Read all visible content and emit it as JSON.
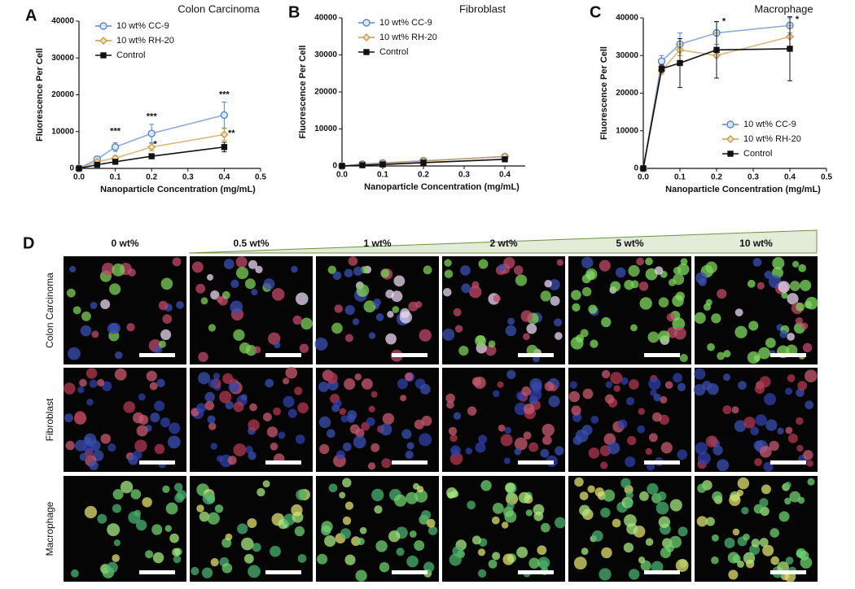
{
  "chart_data": [
    {
      "type": "line",
      "panel": "A",
      "title": "Colon  Carcinoma",
      "x_label": "Nanoparticle Concentration (mg/mL)",
      "y_label": "Fluorescence Per Cell",
      "x": [
        0,
        0.05,
        0.1,
        0.2,
        0.4
      ],
      "xlim": [
        0,
        0.5
      ],
      "xticks": [
        {
          "value": 0,
          "label": "0.0"
        },
        0.1,
        0.2,
        0.3,
        0.4,
        0.5
      ],
      "ylim": [
        0,
        40000
      ],
      "yticks": [
        0,
        10000,
        20000,
        30000,
        40000
      ],
      "legend": "upper left",
      "series": [
        {
          "name": "10 wt% CC-9",
          "color": "#5b86c4",
          "marker": "circle",
          "values": [
            0,
            2500,
            5800,
            9500,
            14500
          ],
          "errors": [
            0,
            800,
            1200,
            2500,
            3500
          ]
        },
        {
          "name": "10 wt% RH-20",
          "color": "#c89a4a",
          "marker": "diamond",
          "values": [
            0,
            1800,
            2800,
            5800,
            9200
          ],
          "errors": [
            0,
            400,
            600,
            1000,
            1600
          ]
        },
        {
          "name": "Control",
          "color": "#111111",
          "marker": "square",
          "values": [
            0,
            1000,
            1800,
            3300,
            5800
          ],
          "errors": [
            0,
            300,
            400,
            600,
            1300
          ]
        }
      ],
      "annotations": [
        {
          "text": "***",
          "x": 0.1,
          "y": 10000
        },
        {
          "text": "***",
          "x": 0.2,
          "y": 14000
        },
        {
          "text": "*",
          "x": 0.21,
          "y": 6500
        },
        {
          "text": "***",
          "x": 0.4,
          "y": 20000
        },
        {
          "text": "**",
          "x": 0.42,
          "y": 9500
        }
      ]
    },
    {
      "type": "line",
      "panel": "B",
      "title": "Fibroblast",
      "x_label": "Nanoparticle Concentration (mg/mL)",
      "y_label": "Fluorescence Per Cell",
      "x": [
        0,
        0.05,
        0.1,
        0.2,
        0.4
      ],
      "xlim": [
        0,
        0.45
      ],
      "xticks": [
        {
          "value": 0,
          "label": "0.0"
        },
        0.1,
        0.2,
        0.3,
        0.4
      ],
      "ylim": [
        0,
        40000
      ],
      "yticks": [
        0,
        10000,
        20000,
        30000,
        40000
      ],
      "legend": "upper left",
      "series": [
        {
          "name": "10 wt% CC-9",
          "color": "#5b86c4",
          "marker": "circle",
          "values": [
            0,
            500,
            800,
            1400,
            2500
          ],
          "errors": [
            0,
            150,
            200,
            300,
            400
          ]
        },
        {
          "name": "10 wt% RH-20",
          "color": "#c89a4a",
          "marker": "diamond",
          "values": [
            0,
            400,
            700,
            1300,
            2600
          ],
          "errors": [
            0,
            150,
            200,
            300,
            400
          ]
        },
        {
          "name": "Control",
          "color": "#111111",
          "marker": "square",
          "values": [
            0,
            200,
            400,
            900,
            1800
          ],
          "errors": [
            0,
            100,
            150,
            200,
            300
          ]
        }
      ],
      "annotations": []
    },
    {
      "type": "line",
      "panel": "C",
      "title": "Macrophage",
      "x_label": "Nanoparticle Concentration (mg/mL)",
      "y_label": "Fluorescence Per Cell",
      "x": [
        0,
        0.05,
        0.1,
        0.2,
        0.4
      ],
      "xlim": [
        0,
        0.5
      ],
      "xticks": [
        {
          "value": 0,
          "label": "0.0"
        },
        0.1,
        0.2,
        0.3,
        0.4,
        0.5
      ],
      "ylim": [
        0,
        40000
      ],
      "yticks": [
        0,
        10000,
        20000,
        30000,
        40000
      ],
      "legend": "lower right",
      "series": [
        {
          "name": "10 wt% CC-9",
          "color": "#5b86c4",
          "marker": "circle",
          "values": [
            0,
            28500,
            33000,
            36000,
            38000
          ],
          "errors": [
            0,
            1500,
            3000,
            3000,
            2000
          ]
        },
        {
          "name": "10 wt% RH-20",
          "color": "#c89a4a",
          "marker": "diamond",
          "values": [
            0,
            26000,
            31500,
            30000,
            35000
          ],
          "errors": [
            0,
            1000,
            1500,
            6000,
            3000
          ]
        },
        {
          "name": "Control",
          "color": "#111111",
          "marker": "square",
          "values": [
            0,
            26500,
            28000,
            31500,
            31800
          ],
          "errors": [
            0,
            1000,
            6500,
            7500,
            8500
          ]
        }
      ],
      "annotations": [
        {
          "text": "*",
          "x": 0.22,
          "y": 39000
        },
        {
          "text": "*",
          "x": 0.42,
          "y": 39500
        }
      ]
    }
  ],
  "panel_d": {
    "label": "D",
    "columns": [
      "0 wt%",
      "0.5 wt%",
      "1 wt%",
      "2 wt%",
      "5 wt%",
      "10 wt%"
    ],
    "rows": [
      "Colon Carcinoma",
      "Fibroblast",
      "Macrophage"
    ]
  }
}
